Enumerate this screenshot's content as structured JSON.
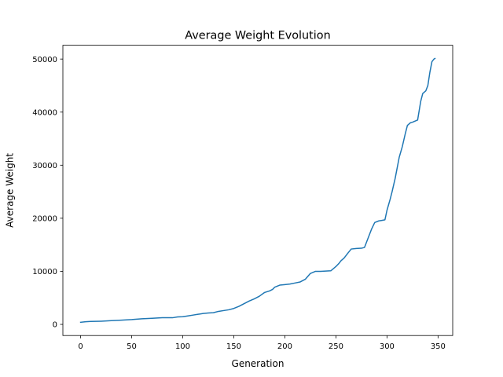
{
  "chart_data": {
    "type": "line",
    "title": "Average Weight Evolution",
    "xlabel": "Generation",
    "ylabel": "Average Weight",
    "xlim": [
      -17.35,
      364.35
    ],
    "ylim": [
      -2100,
      52600
    ],
    "xticks": [
      0,
      50,
      100,
      150,
      200,
      250,
      300,
      350
    ],
    "yticks": [
      0,
      10000,
      20000,
      30000,
      40000,
      50000
    ],
    "xtick_labels": [
      "0",
      "50",
      "100",
      "150",
      "200",
      "250",
      "300",
      "350"
    ],
    "ytick_labels": [
      "0",
      "10000",
      "20000",
      "30000",
      "40000",
      "50000"
    ],
    "grid": false,
    "series": [
      {
        "color": "#1f77b4",
        "x": [
          0,
          5,
          10,
          20,
          30,
          40,
          50,
          60,
          70,
          80,
          90,
          95,
          100,
          105,
          110,
          115,
          120,
          125,
          130,
          135,
          140,
          145,
          150,
          155,
          160,
          165,
          170,
          175,
          180,
          185,
          188,
          190,
          195,
          200,
          205,
          210,
          215,
          220,
          225,
          230,
          235,
          240,
          245,
          250,
          253,
          255,
          258,
          262,
          265,
          270,
          275,
          278,
          280,
          283,
          285,
          288,
          292,
          295,
          298,
          300,
          303,
          305,
          308,
          310,
          312,
          315,
          318,
          320,
          323,
          325,
          330,
          333,
          335,
          338,
          340,
          342,
          344,
          346,
          347
        ],
        "y": [
          400,
          500,
          550,
          600,
          700,
          800,
          900,
          1050,
          1150,
          1250,
          1250,
          1400,
          1450,
          1600,
          1750,
          1900,
          2050,
          2150,
          2200,
          2450,
          2600,
          2750,
          3000,
          3400,
          3900,
          4400,
          4800,
          5300,
          6000,
          6300,
          6600,
          7000,
          7400,
          7500,
          7600,
          7800,
          8000,
          8500,
          9600,
          10000,
          10000,
          10050,
          10100,
          10900,
          11500,
          12000,
          12500,
          13500,
          14200,
          14300,
          14350,
          14500,
          15500,
          17000,
          18000,
          19200,
          19500,
          19600,
          19700,
          21500,
          23500,
          25000,
          27500,
          29500,
          31500,
          33500,
          36000,
          37500,
          38000,
          38100,
          38500,
          42000,
          43500,
          44000,
          45000,
          47500,
          49500,
          50000,
          50100
        ]
      }
    ]
  }
}
